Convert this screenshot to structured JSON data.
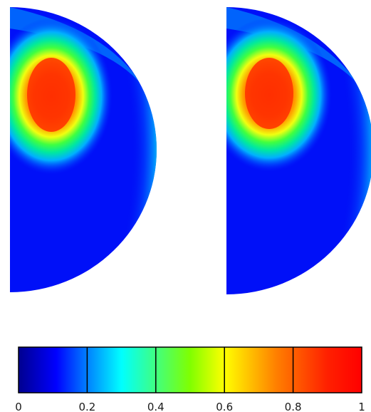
{
  "figure": {
    "panels": [
      {
        "name": "left-field-panel",
        "variant": "a"
      },
      {
        "name": "right-field-panel",
        "variant": "b"
      }
    ],
    "colorbar": {
      "colormap": "jet",
      "range": [
        0,
        1
      ],
      "ticks": [
        {
          "value": 0,
          "label": "0"
        },
        {
          "value": 0.2,
          "label": "0.2"
        },
        {
          "value": 0.4,
          "label": "0.4"
        },
        {
          "value": 0.6,
          "label": "0.6"
        },
        {
          "value": 0.8,
          "label": "0.8"
        },
        {
          "value": 1,
          "label": "1"
        }
      ],
      "colors": {
        "0": "#0000ff",
        "0.2": "#00ffff",
        "0.4": "#00ff00",
        "0.6": "#ffff00",
        "0.8": "#ff7f00",
        "1": "#ff0000"
      }
    }
  }
}
